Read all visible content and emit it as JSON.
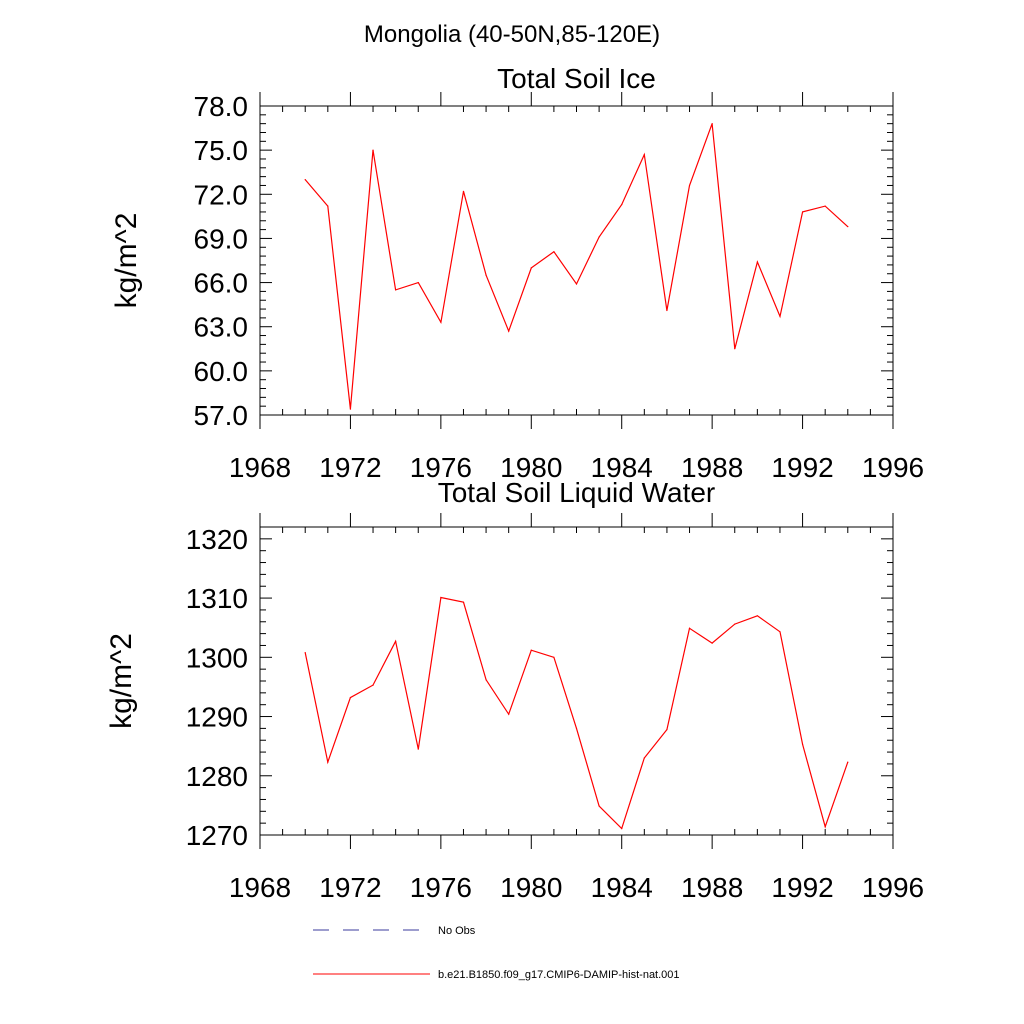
{
  "figure": {
    "main_title": "Mongolia (40-50N,85-120E)"
  },
  "legend": {
    "position": "bottom",
    "entries": [
      {
        "label": "No Obs",
        "color": "#3b3b9e",
        "style": "dashed"
      },
      {
        "label": "b.e21.B1850.f09_g17.CMIP6-DAMIP-hist-nat.001",
        "color": "#ff0000",
        "style": "solid"
      }
    ]
  },
  "chart_data": [
    {
      "type": "line",
      "title": "Total Soil Ice",
      "xlabel": "",
      "ylabel": "kg/m^2",
      "xlim": [
        1968,
        1996
      ],
      "ylim": [
        57,
        78
      ],
      "xticks": [
        1968,
        1972,
        1976,
        1980,
        1984,
        1988,
        1992,
        1996
      ],
      "xtick_labels": [
        "1968",
        "1972",
        "1976",
        "1980",
        "1984",
        "1988",
        "1992",
        "1996"
      ],
      "yticks": [
        57,
        60,
        63,
        66,
        69,
        72,
        75,
        78
      ],
      "ytick_labels": [
        "57.0",
        "60.0",
        "63.0",
        "66.0",
        "69.0",
        "72.0",
        "75.0",
        "78.0"
      ],
      "grid": false,
      "series": [
        {
          "name": "b.e21.B1850.f09_g17.CMIP6-DAMIP-hist-nat.001",
          "color": "#ff0000",
          "x": [
            1970,
            1971,
            1972,
            1973,
            1974,
            1975,
            1976,
            1977,
            1978,
            1979,
            1980,
            1981,
            1982,
            1983,
            1984,
            1985,
            1986,
            1987,
            1988,
            1989,
            1990,
            1991,
            1992,
            1993,
            1994
          ],
          "y": [
            73.0,
            71.2,
            57.4,
            75.0,
            65.5,
            66.0,
            63.3,
            72.2,
            66.5,
            62.7,
            67.0,
            68.1,
            65.9,
            69.1,
            71.3,
            74.7,
            64.1,
            72.6,
            76.8,
            61.5,
            67.4,
            63.7,
            70.8,
            71.2,
            69.8
          ]
        }
      ]
    },
    {
      "type": "line",
      "title": "Total Soil Liquid Water",
      "xlabel": "",
      "ylabel": "kg/m^2",
      "xlim": [
        1968,
        1996
      ],
      "ylim": [
        1270,
        1322
      ],
      "xticks": [
        1968,
        1972,
        1976,
        1980,
        1984,
        1988,
        1992,
        1996
      ],
      "xtick_labels": [
        "1968",
        "1972",
        "1976",
        "1980",
        "1984",
        "1988",
        "1992",
        "1996"
      ],
      "yticks": [
        1270,
        1280,
        1290,
        1300,
        1310,
        1320
      ],
      "ytick_labels": [
        "1270",
        "1280",
        "1290",
        "1300",
        "1310",
        "1320"
      ],
      "grid": false,
      "series": [
        {
          "name": "b.e21.B1850.f09_g17.CMIP6-DAMIP-hist-nat.001",
          "color": "#ff0000",
          "x": [
            1970,
            1971,
            1972,
            1973,
            1974,
            1975,
            1976,
            1977,
            1978,
            1979,
            1980,
            1981,
            1982,
            1983,
            1984,
            1985,
            1986,
            1987,
            1988,
            1989,
            1990,
            1991,
            1992,
            1993,
            1994
          ],
          "y": [
            1300.8,
            1282.3,
            1293.2,
            1295.3,
            1302.7,
            1284.5,
            1310.1,
            1309.3,
            1296.2,
            1290.4,
            1301.2,
            1300.0,
            1288.0,
            1274.9,
            1271.1,
            1283.0,
            1287.8,
            1304.9,
            1302.4,
            1305.6,
            1307.0,
            1304.3,
            1285.3,
            1271.4,
            1282.3
          ]
        }
      ]
    }
  ]
}
